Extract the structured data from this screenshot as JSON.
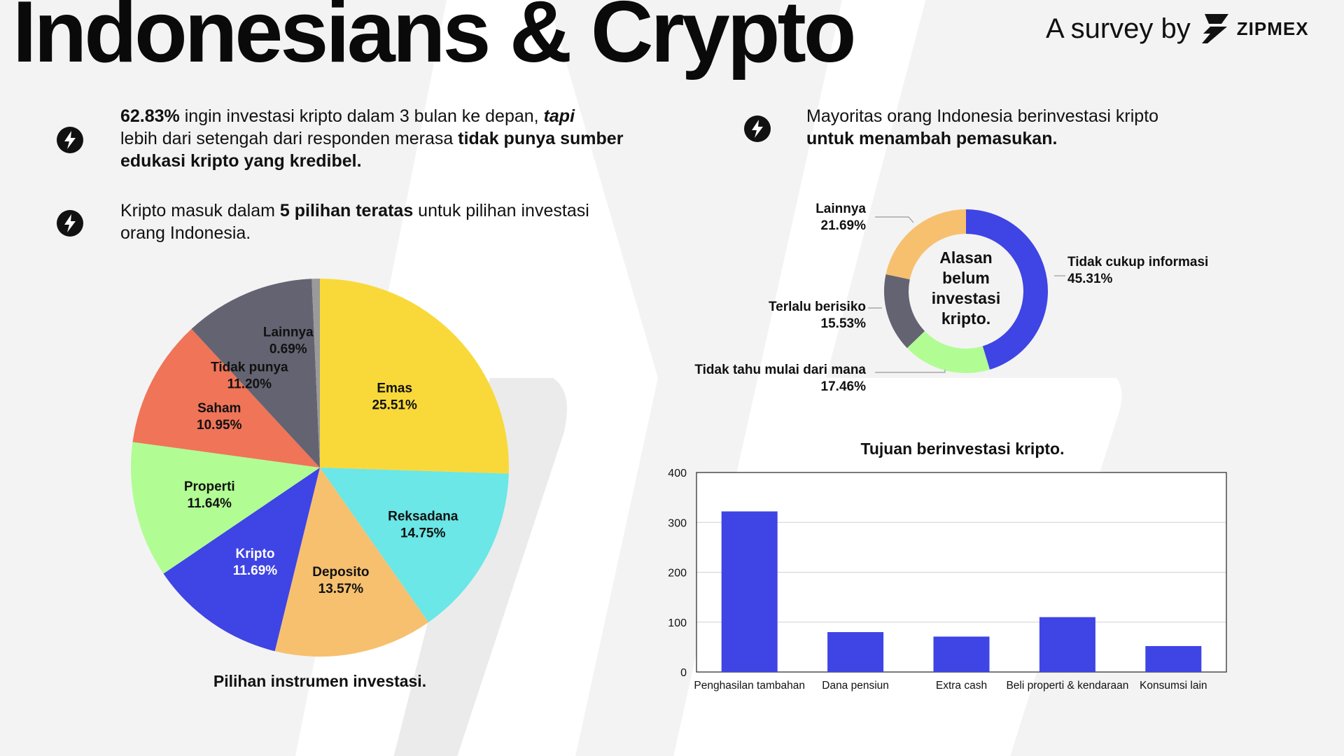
{
  "header": {
    "title": "Indonesians & Crypto",
    "byline": "A survey by",
    "brand": "ZIPMEX"
  },
  "bullets": {
    "b1": {
      "p1": "62.83%",
      "p2": " ingin investasi kripto dalam 3 bulan ke depan, ",
      "p3": "tapi",
      "p4": "lebih dari setengah dari responden merasa ",
      "p5": "tidak punya sumber edukasi kripto yang kredibel."
    },
    "b2": {
      "p1": "Kripto masuk dalam ",
      "p2": "5 pilihan teratas",
      "p3": " untuk pilihan investasi orang Indonesia."
    },
    "b3": {
      "p1": "Mayoritas orang Indonesia berinvestasi kripto",
      "p2": "untuk menambah pemasukan."
    }
  },
  "colors": {
    "accent": "#3f44e4",
    "yellow": "#f9d93a",
    "cyan": "#6ae7e6",
    "orange": "#f6c06f",
    "green": "#b1fd94",
    "red": "#ef7458",
    "slate": "#636372",
    "gray": "#9a9a9a"
  },
  "chart_data": [
    {
      "type": "pie",
      "title": "Pilihan instrumen investasi.",
      "slices": [
        {
          "label": "Emas",
          "value": 25.51,
          "display": "25.51%",
          "color": "#f9d93a"
        },
        {
          "label": "Reksadana",
          "value": 14.75,
          "display": "14.75%",
          "color": "#6ae7e6"
        },
        {
          "label": "Deposito",
          "value": 13.57,
          "display": "13.57%",
          "color": "#f6c06f"
        },
        {
          "label": "Kripto",
          "value": 11.69,
          "display": "11.69%",
          "color": "#3f44e4"
        },
        {
          "label": "Properti",
          "value": 11.64,
          "display": "11.64%",
          "color": "#b1fd94"
        },
        {
          "label": "Saham",
          "value": 10.95,
          "display": "10.95%",
          "color": "#ef7458"
        },
        {
          "label": "Tidak punya",
          "value": 11.2,
          "display": "11.20%",
          "color": "#636372"
        },
        {
          "label": "Lainnya",
          "value": 0.69,
          "display": "0.69%",
          "color": "#9a9a9a"
        }
      ]
    },
    {
      "type": "pie",
      "title": "Alasan belum investasi kripto.",
      "title_lines": [
        "Alasan",
        "belum",
        "investasi",
        "kripto."
      ],
      "slices": [
        {
          "label": "Tidak cukup informasi",
          "value": 45.31,
          "display": "45.31%",
          "color": "#3f44e4"
        },
        {
          "label": "Tidak tahu mulai dari mana",
          "value": 17.46,
          "display": "17.46%",
          "color": "#b1fd94"
        },
        {
          "label": "Terlalu berisiko",
          "value": 15.53,
          "display": "15.53%",
          "color": "#636372"
        },
        {
          "label": "Lainnya",
          "value": 21.69,
          "display": "21.69%",
          "color": "#f6c06f"
        }
      ]
    },
    {
      "type": "bar",
      "title": "Tujuan berinvestasi kripto.",
      "categories": [
        "Penghasilan tambahan",
        "Dana pensiun",
        "Extra cash",
        "Beli properti & kendaraan",
        "Konsumsi lain"
      ],
      "values": [
        322,
        80,
        71,
        110,
        52
      ],
      "ylim": [
        0,
        400
      ],
      "yticks": [
        0,
        100,
        200,
        300,
        400
      ],
      "grid": true,
      "color": "#3f44e4"
    }
  ]
}
